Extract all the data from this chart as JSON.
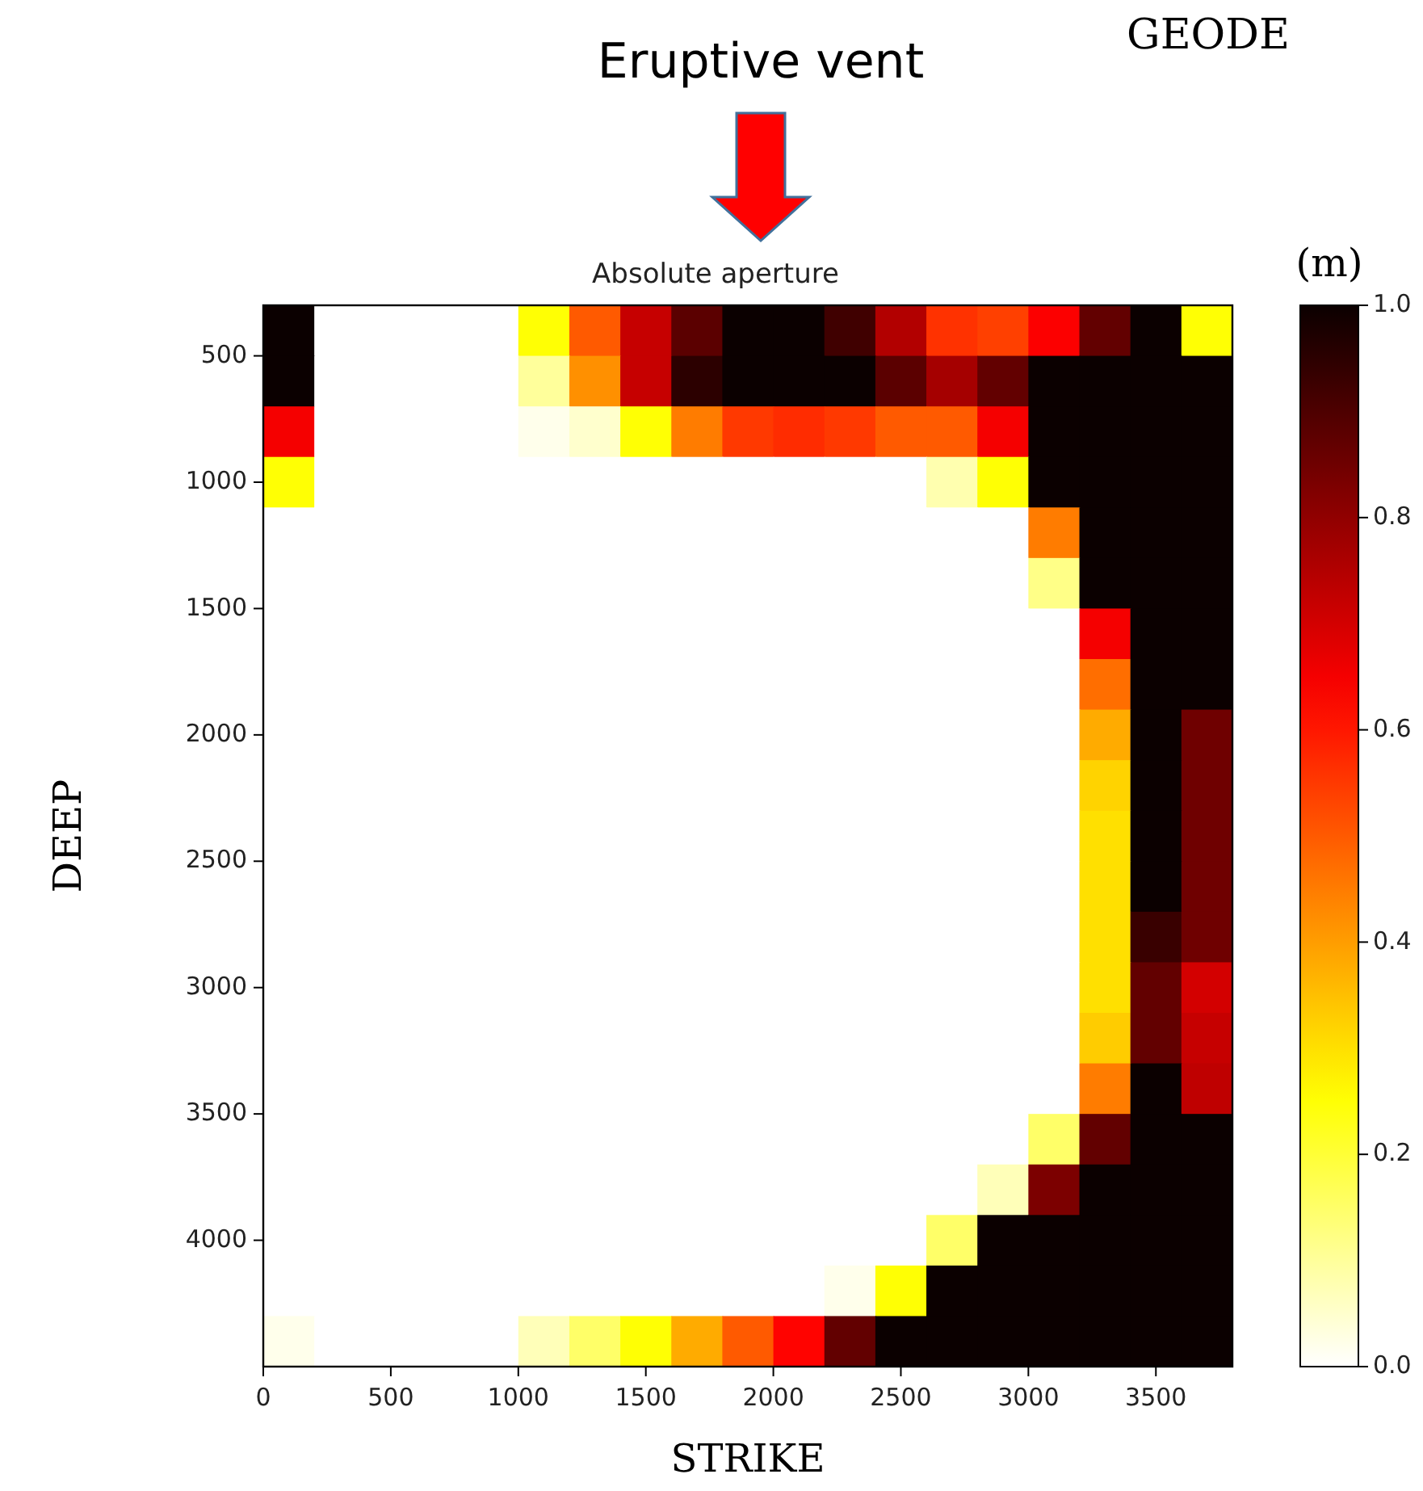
{
  "chart_data": {
    "type": "heatmap",
    "title": "Absolute aperture",
    "xlabel": "STRIKE",
    "ylabel": "DEEP",
    "clabel": "(m)",
    "annotations": [
      "Eruptive vent",
      "GEODE"
    ],
    "x": [
      100,
      300,
      500,
      700,
      900,
      1100,
      1300,
      1500,
      1700,
      1900,
      2100,
      2300,
      2500,
      2700,
      2900,
      3100,
      3300,
      3500,
      3700
    ],
    "y": [
      400,
      600,
      800,
      1000,
      1200,
      1400,
      1600,
      1800,
      2000,
      2200,
      2400,
      2600,
      2800,
      3000,
      3200,
      3400,
      3600,
      3800,
      4000,
      4200,
      4400
    ],
    "xlim": [
      0,
      3800
    ],
    "xticks": [
      0,
      500,
      1000,
      1500,
      2000,
      2500,
      3000,
      3500
    ],
    "ylim": [
      4500,
      300
    ],
    "yticks": [
      500,
      1000,
      1500,
      2000,
      2500,
      3000,
      3500,
      4000
    ],
    "clim": [
      0,
      1
    ],
    "cticks": [
      {
        "value": 0,
        "label": "0.0"
      },
      {
        "value": 0.2,
        "label": "0.2"
      },
      {
        "value": 0.4,
        "label": "0.4"
      },
      {
        "value": 0.6,
        "label": "0.6"
      },
      {
        "value": 0.8,
        "label": "0.8"
      },
      {
        "value": 1,
        "label": "1.0"
      }
    ],
    "cells": [
      [
        1,
        0,
        0,
        0,
        0,
        0.25,
        0.5,
        0.72,
        0.88,
        1,
        1,
        0.92,
        0.75,
        0.56,
        0.54,
        0.64,
        0.87,
        1,
        0.25
      ],
      [
        1,
        0,
        0,
        0,
        0,
        0.1,
        0.42,
        0.72,
        0.95,
        1,
        1,
        1,
        0.88,
        0.77,
        0.87,
        1,
        1,
        1,
        1
      ],
      [
        0.65,
        0,
        0,
        0,
        0,
        0.02,
        0.05,
        0.25,
        0.45,
        0.55,
        0.57,
        0.55,
        0.5,
        0.5,
        0.65,
        1,
        1,
        1,
        1
      ],
      [
        0.25,
        0,
        0,
        0,
        0,
        0,
        0,
        0,
        0,
        0,
        0,
        0,
        0,
        0.08,
        0.25,
        1,
        1,
        1,
        1
      ],
      [
        0,
        0,
        0,
        0,
        0,
        0,
        0,
        0,
        0,
        0,
        0,
        0,
        0,
        0,
        0,
        0.45,
        1,
        1,
        1
      ],
      [
        0,
        0,
        0,
        0,
        0,
        0,
        0,
        0,
        0,
        0,
        0,
        0,
        0,
        0,
        0,
        0.12,
        1,
        1,
        1
      ],
      [
        0,
        0,
        0,
        0,
        0,
        0,
        0,
        0,
        0,
        0,
        0,
        0,
        0,
        0,
        0,
        0,
        0.65,
        1,
        1
      ],
      [
        0,
        0,
        0,
        0,
        0,
        0,
        0,
        0,
        0,
        0,
        0,
        0,
        0,
        0,
        0,
        0,
        0.47,
        1,
        1
      ],
      [
        0,
        0,
        0,
        0,
        0,
        0,
        0,
        0,
        0,
        0,
        0,
        0,
        0,
        0,
        0,
        0,
        0.38,
        1,
        0.85
      ],
      [
        0,
        0,
        0,
        0,
        0,
        0,
        0,
        0,
        0,
        0,
        0,
        0,
        0,
        0,
        0,
        0,
        0.32,
        1,
        0.85
      ],
      [
        0,
        0,
        0,
        0,
        0,
        0,
        0,
        0,
        0,
        0,
        0,
        0,
        0,
        0,
        0,
        0,
        0.3,
        1,
        0.85
      ],
      [
        0,
        0,
        0,
        0,
        0,
        0,
        0,
        0,
        0,
        0,
        0,
        0,
        0,
        0,
        0,
        0,
        0.3,
        1,
        0.85
      ],
      [
        0,
        0,
        0,
        0,
        0,
        0,
        0,
        0,
        0,
        0,
        0,
        0,
        0,
        0,
        0,
        0,
        0.3,
        0.93,
        0.85
      ],
      [
        0,
        0,
        0,
        0,
        0,
        0,
        0,
        0,
        0,
        0,
        0,
        0,
        0,
        0,
        0,
        0,
        0.3,
        0.87,
        0.7
      ],
      [
        0,
        0,
        0,
        0,
        0,
        0,
        0,
        0,
        0,
        0,
        0,
        0,
        0,
        0,
        0,
        0,
        0.33,
        0.87,
        0.72
      ],
      [
        0,
        0,
        0,
        0,
        0,
        0,
        0,
        0,
        0,
        0,
        0,
        0,
        0,
        0,
        0,
        0,
        0.45,
        1,
        0.73
      ],
      [
        0,
        0,
        0,
        0,
        0,
        0,
        0,
        0,
        0,
        0,
        0,
        0,
        0,
        0,
        0,
        0.15,
        0.87,
        1,
        1
      ],
      [
        0,
        0,
        0,
        0,
        0,
        0,
        0,
        0,
        0,
        0,
        0,
        0,
        0,
        0,
        0.07,
        0.83,
        1,
        1,
        1
      ],
      [
        0,
        0,
        0,
        0,
        0,
        0,
        0,
        0,
        0,
        0,
        0,
        0,
        0,
        0.15,
        1,
        1,
        1,
        1,
        1
      ],
      [
        0,
        0,
        0,
        0,
        0,
        0,
        0,
        0,
        0,
        0,
        0,
        0.02,
        0.25,
        1,
        1,
        1,
        1,
        1,
        1
      ],
      [
        0.02,
        0,
        0,
        0,
        0,
        0.07,
        0.15,
        0.25,
        0.38,
        0.5,
        0.63,
        0.87,
        1,
        1,
        1,
        1,
        1,
        1,
        1
      ]
    ]
  }
}
